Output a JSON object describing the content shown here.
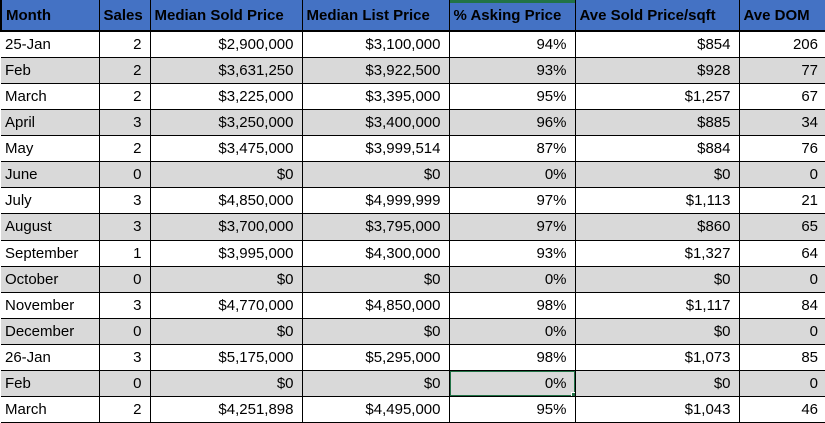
{
  "app": {
    "kind": "spreadsheet-grid"
  },
  "colors": {
    "header_bg": "#4472C4",
    "header_text": "#000000",
    "row_alt_bg": "#D9D9D9",
    "row_bg": "#FFFFFF",
    "grid_line": "#000000",
    "selection_green": "#217346"
  },
  "table": {
    "columns": [
      {
        "label": "Month",
        "align": "left"
      },
      {
        "label": "Sales",
        "align": "right"
      },
      {
        "label": "Median Sold Price",
        "align": "right"
      },
      {
        "label": "Median List Price",
        "align": "right"
      },
      {
        "label": "% Asking Price",
        "align": "right"
      },
      {
        "label": "Ave Sold Price/sqft",
        "align": "right"
      },
      {
        "label": "Ave DOM",
        "align": "right"
      }
    ],
    "rows": [
      [
        "25-Jan",
        "2",
        "$2,900,000",
        "$3,100,000",
        "94%",
        "$854",
        "206"
      ],
      [
        "Feb",
        "2",
        "$3,631,250",
        "$3,922,500",
        "93%",
        "$928",
        "77"
      ],
      [
        "March",
        "2",
        "$3,225,000",
        "$3,395,000",
        "95%",
        "$1,257",
        "67"
      ],
      [
        "April",
        "3",
        "$3,250,000",
        "$3,400,000",
        "96%",
        "$885",
        "34"
      ],
      [
        "May",
        "2",
        "$3,475,000",
        "$3,999,514",
        "87%",
        "$884",
        "76"
      ],
      [
        "June",
        "0",
        "$0",
        "$0",
        "0%",
        "$0",
        "0"
      ],
      [
        "July",
        "3",
        "$4,850,000",
        "$4,999,999",
        "97%",
        "$1,113",
        "21"
      ],
      [
        "August",
        "3",
        "$3,700,000",
        "$3,795,000",
        "97%",
        "$860",
        "65"
      ],
      [
        "September",
        "1",
        "$3,995,000",
        "$4,300,000",
        "93%",
        "$1,327",
        "64"
      ],
      [
        "October",
        "0",
        "$0",
        "$0",
        "0%",
        "$0",
        "0"
      ],
      [
        "November",
        "3",
        "$4,770,000",
        "$4,850,000",
        "98%",
        "$1,117",
        "84"
      ],
      [
        "December",
        "0",
        "$0",
        "$0",
        "0%",
        "$0",
        "0"
      ],
      [
        "26-Jan",
        "3",
        "$5,175,000",
        "$5,295,000",
        "98%",
        "$1,073",
        "85"
      ],
      [
        "Feb",
        "0",
        "$0",
        "$0",
        "0%",
        "$0",
        "0"
      ],
      [
        "March",
        "2",
        "$4,251,898",
        "$4,495,000",
        "95%",
        "$1,043",
        "46"
      ]
    ]
  },
  "selection": {
    "row_index": 13,
    "col_index": 4,
    "cell_value": "0%"
  }
}
